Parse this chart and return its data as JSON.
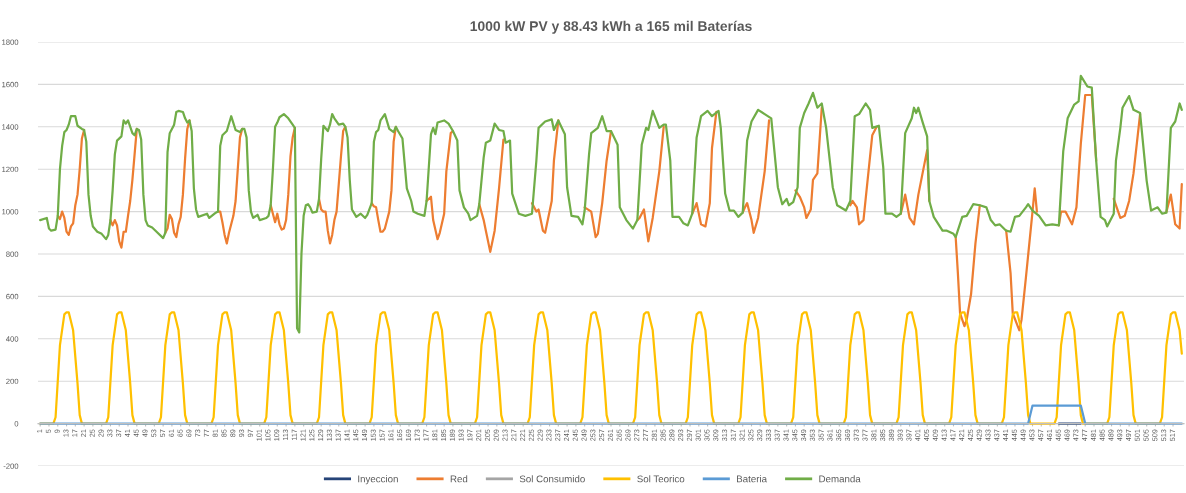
{
  "chart_data": {
    "type": "line",
    "title": "1000 kW PV y 88.43 kWh a 165 mil Baterías",
    "xlim": [
      0,
      522
    ],
    "xticks": [
      1,
      5,
      9,
      13,
      17,
      21,
      25,
      29,
      33,
      37,
      41,
      45,
      49,
      53,
      57,
      61,
      65,
      69,
      73,
      77,
      81,
      85,
      89,
      93,
      97,
      101,
      105,
      109,
      113,
      117,
      121,
      125,
      129,
      133,
      137,
      141,
      145,
      149,
      153,
      157,
      161,
      165,
      169,
      173,
      177,
      181,
      185,
      189,
      193,
      197,
      201,
      205,
      209,
      213,
      217,
      221,
      225,
      229,
      233,
      237,
      241,
      245,
      249,
      253,
      257,
      261,
      265,
      269,
      273,
      277,
      281,
      285,
      289,
      293,
      297,
      301,
      305,
      309,
      313,
      317,
      321,
      325,
      329,
      333,
      337,
      341,
      345,
      349,
      353,
      357,
      361,
      365,
      369,
      373,
      377,
      381,
      385,
      389,
      393,
      397,
      401,
      405,
      409,
      413,
      417,
      421,
      425,
      429,
      433,
      437,
      441,
      445,
      449,
      453,
      457,
      461,
      465,
      469,
      473,
      477,
      481,
      485,
      489,
      493,
      497,
      501,
      505,
      509,
      513,
      517
    ],
    "ylim": [
      -200,
      1800
    ],
    "yticks": [
      -200,
      0,
      200,
      400,
      600,
      800,
      1000,
      1200,
      1400,
      1600,
      1800
    ],
    "grid": "y",
    "legend": "bottom",
    "marker": "none",
    "line_style": "solid",
    "series": [
      {
        "name": "Inyeccion",
        "color": "#264478",
        "x": [
          465,
          475
        ],
        "values": [
          0,
          0
        ]
      },
      {
        "name": "Red",
        "color": "#ed7d31",
        "x": [
          9,
          10,
          11,
          12,
          13,
          14,
          15,
          16,
          17,
          18,
          19,
          20,
          21,
          22,
          33,
          34,
          35,
          36,
          37,
          38,
          39,
          40,
          41,
          42,
          43,
          44,
          45,
          46,
          58,
          59,
          60,
          61,
          62,
          63,
          64,
          65,
          66,
          67,
          68,
          69,
          70,
          82,
          83,
          84,
          85,
          86,
          87,
          88,
          89,
          90,
          91,
          92,
          93,
          94,
          106,
          107,
          108,
          109,
          110,
          111,
          112,
          113,
          114,
          115,
          116,
          117,
          118,
          128,
          129,
          130,
          131,
          132,
          133,
          134,
          135,
          136,
          137,
          138,
          139,
          140,
          141,
          152,
          153,
          154,
          155,
          156,
          157,
          158,
          159,
          160,
          161,
          162,
          163,
          164,
          177,
          179,
          180,
          182,
          183,
          185,
          186,
          188,
          189,
          190,
          201,
          203,
          204,
          206,
          208,
          210,
          212,
          213,
          225,
          227,
          228,
          230,
          231,
          234,
          235,
          237,
          238,
          249,
          252,
          254,
          255,
          257,
          259,
          261,
          262,
          273,
          274,
          276,
          278,
          280,
          283,
          285,
          286,
          298,
          300,
          302,
          304,
          306,
          307,
          309,
          310,
          321,
          322,
          323,
          325,
          326,
          328,
          331,
          333,
          334,
          345,
          347,
          349,
          350,
          352,
          353,
          355,
          357,
          358,
          370,
          371,
          373,
          374,
          376,
          378,
          380,
          382,
          383,
          393,
          395,
          397,
          399,
          401,
          405,
          406,
          407,
          418,
          419,
          420,
          422,
          423,
          425,
          427,
          429,
          430,
          441,
          443,
          444,
          447,
          448,
          450,
          453,
          454,
          455,
          456,
          465,
          466,
          468,
          471,
          473,
          475,
          477,
          480,
          482,
          483,
          490,
          493,
          495,
          497,
          499,
          502,
          503,
          514,
          516,
          518,
          520,
          521
        ],
        "values": [
          980,
          965,
          1000,
          970,
          905,
          890,
          930,
          945,
          1030,
          1080,
          1200,
          1345,
          1385,
          null,
          960,
          935,
          960,
          935,
          860,
          830,
          905,
          905,
          980,
          1050,
          1150,
          1270,
          1390,
          null,
          900,
          920,
          985,
          965,
          900,
          880,
          940,
          975,
          1080,
          1250,
          1390,
          1430,
          null,
          1000,
          1000,
          950,
          890,
          850,
          900,
          940,
          980,
          1050,
          1200,
          1350,
          1390,
          null,
          1030,
          990,
          950,
          990,
          940,
          915,
          920,
          960,
          1080,
          1260,
          1350,
          1395,
          null,
          1060,
          1010,
          1000,
          1000,
          910,
          850,
          890,
          960,
          1000,
          1130,
          1260,
          1380,
          1400,
          null,
          1040,
          1025,
          1020,
          960,
          905,
          905,
          920,
          960,
          1000,
          1100,
          1330,
          1400,
          null,
          1050,
          1070,
          960,
          870,
          900,
          990,
          1190,
          1370,
          1380,
          null,
          1035,
          960,
          910,
          810,
          910,
          1110,
          1340,
          null,
          1040,
          1000,
          1010,
          910,
          900,
          1050,
          1240,
          1430,
          null,
          1020,
          1000,
          880,
          895,
          1040,
          1240,
          1380,
          null,
          960,
          970,
          1010,
          860,
          970,
          1190,
          1400,
          null,
          990,
          1040,
          940,
          930,
          1040,
          1300,
          1470,
          null,
          995,
          1020,
          1040,
          960,
          900,
          970,
          1190,
          1430,
          null,
          1100,
          1070,
          1020,
          970,
          1010,
          1150,
          1180,
          1490,
          null,
          1030,
          1050,
          1020,
          940,
          960,
          1160,
          1360,
          1400,
          null,
          990,
          1080,
          970,
          940,
          1080,
          1290,
          1050,
          null,
          880,
          710,
          520,
          460,
          490,
          610,
          850,
          1030,
          null,
          910,
          710,
          520,
          440,
          490,
          690,
          1000,
          1110,
          1000,
          null,
          935,
          1000,
          1000,
          940,
          1020,
          1320,
          1550,
          1550,
          1240,
          null,
          1060,
          970,
          980,
          1050,
          1180,
          1460,
          null,
          1000,
          1080,
          940,
          920,
          1130
        ]
      },
      {
        "name": "Sol Consumido",
        "color": "#a5a5a5"
      },
      {
        "name": "Sol Teorico",
        "color": "#ffc000",
        "x": [
          1,
          7,
          8,
          10,
          12,
          13,
          14,
          16,
          18,
          19,
          20,
          31,
          32,
          34,
          36,
          37,
          38,
          40,
          42,
          43,
          44,
          55,
          56,
          58,
          60,
          61,
          62,
          64,
          66,
          67,
          68,
          79,
          80,
          82,
          84,
          85,
          86,
          88,
          90,
          91,
          92,
          103,
          104,
          106,
          108,
          109,
          110,
          112,
          114,
          115,
          116,
          127,
          128,
          130,
          132,
          133,
          134,
          136,
          138,
          139,
          140,
          151,
          152,
          154,
          156,
          157,
          158,
          160,
          162,
          163,
          164,
          175,
          176,
          178,
          180,
          181,
          182,
          184,
          186,
          187,
          188,
          199,
          200,
          202,
          204,
          205,
          206,
          208,
          210,
          211,
          212,
          223,
          224,
          226,
          228,
          229,
          230,
          232,
          234,
          235,
          236,
          247,
          248,
          250,
          252,
          253,
          254,
          256,
          258,
          259,
          260,
          271,
          272,
          274,
          276,
          277,
          278,
          280,
          282,
          283,
          284,
          295,
          296,
          298,
          300,
          301,
          302,
          304,
          306,
          307,
          308,
          319,
          320,
          322,
          324,
          325,
          326,
          328,
          330,
          331,
          332,
          343,
          344,
          346,
          348,
          349,
          350,
          352,
          354,
          355,
          356,
          367,
          368,
          370,
          372,
          373,
          374,
          376,
          378,
          379,
          380,
          391,
          392,
          394,
          396,
          397,
          398,
          400,
          402,
          403,
          404,
          415,
          416,
          418,
          420,
          421,
          422,
          424,
          426,
          427,
          428,
          439,
          440,
          442,
          444,
          445,
          446,
          448,
          450,
          451,
          452,
          463,
          464,
          466,
          468,
          469,
          470,
          472,
          474,
          475,
          476,
          487,
          488,
          490,
          492,
          493,
          494,
          496,
          498,
          499,
          500,
          511,
          512,
          514,
          516,
          517,
          518,
          520,
          521
        ],
        "values": [
          0,
          0,
          30,
          370,
          515,
          525,
          525,
          440,
          190,
          40,
          0,
          0,
          30,
          370,
          515,
          525,
          525,
          440,
          190,
          40,
          0,
          0,
          30,
          370,
          515,
          525,
          525,
          440,
          190,
          40,
          0,
          0,
          30,
          370,
          515,
          525,
          525,
          440,
          190,
          40,
          0,
          0,
          30,
          370,
          515,
          525,
          525,
          440,
          190,
          40,
          0,
          0,
          30,
          370,
          515,
          525,
          525,
          440,
          190,
          40,
          0,
          0,
          30,
          370,
          515,
          525,
          525,
          440,
          190,
          40,
          0,
          0,
          30,
          370,
          515,
          525,
          525,
          440,
          190,
          40,
          0,
          0,
          30,
          370,
          515,
          525,
          525,
          440,
          190,
          40,
          0,
          0,
          30,
          370,
          515,
          525,
          525,
          440,
          190,
          40,
          0,
          0,
          30,
          370,
          515,
          525,
          525,
          440,
          190,
          40,
          0,
          0,
          30,
          370,
          515,
          525,
          525,
          440,
          190,
          40,
          0,
          0,
          30,
          370,
          515,
          525,
          525,
          440,
          190,
          40,
          0,
          0,
          30,
          370,
          515,
          525,
          525,
          440,
          190,
          40,
          0,
          0,
          30,
          370,
          515,
          525,
          525,
          440,
          190,
          40,
          0,
          0,
          30,
          370,
          515,
          525,
          525,
          440,
          190,
          40,
          0,
          0,
          30,
          370,
          515,
          525,
          525,
          440,
          190,
          40,
          0,
          0,
          30,
          370,
          515,
          525,
          525,
          440,
          190,
          40,
          0,
          0,
          30,
          370,
          515,
          525,
          525,
          440,
          190,
          40,
          0,
          0,
          30,
          370,
          515,
          525,
          525,
          440,
          190,
          40,
          0,
          0,
          30,
          370,
          515,
          525,
          525,
          440,
          190,
          40,
          0,
          0,
          30,
          370,
          515,
          525,
          525,
          440,
          330
        ]
      },
      {
        "name": "Bateria",
        "color": "#5b9bd5",
        "x": [
          1,
          451,
          453,
          475,
          477,
          521
        ],
        "values": [
          0,
          0,
          85,
          85,
          0,
          0
        ]
      },
      {
        "name": "Demanda",
        "color": "#70ad47",
        "x": [
          1,
          4,
          5,
          6,
          8,
          9,
          10,
          11,
          12,
          13,
          14,
          15,
          17,
          18,
          20,
          21,
          22,
          23,
          24,
          25,
          27,
          29,
          31,
          32,
          33,
          34,
          35,
          36,
          38,
          39,
          40,
          41,
          43,
          44,
          45,
          46,
          47,
          48,
          49,
          50,
          52,
          54,
          57,
          58,
          59,
          60,
          62,
          63,
          64,
          66,
          67,
          68,
          69,
          70,
          71,
          72,
          73,
          77,
          78,
          81,
          82,
          83,
          84,
          86,
          88,
          90,
          92,
          93,
          94,
          95,
          96,
          97,
          98,
          100,
          101,
          104,
          105,
          106,
          107,
          108,
          109,
          110,
          112,
          114,
          116,
          117,
          118,
          119,
          120,
          121,
          122,
          123,
          124,
          125,
          127,
          128,
          129,
          130,
          132,
          133,
          134,
          135,
          137,
          139,
          140,
          141,
          142,
          143,
          145,
          147,
          149,
          150,
          152,
          153,
          154,
          155,
          156,
          158,
          160,
          162,
          163,
          164,
          166,
          168,
          170,
          171,
          173,
          176,
          177,
          179,
          180,
          181,
          182,
          185,
          187,
          189,
          191,
          192,
          194,
          196,
          197,
          200,
          201,
          203,
          204,
          206,
          208,
          210,
          212,
          213,
          215,
          216,
          219,
          222,
          225,
          227,
          228,
          231,
          234,
          235,
          237,
          240,
          241,
          243,
          246,
          248,
          249,
          251,
          252,
          255,
          257,
          259,
          261,
          264,
          265,
          268,
          271,
          273,
          275,
          277,
          278,
          280,
          283,
          285,
          286,
          288,
          289,
          292,
          294,
          296,
          298,
          300,
          302,
          305,
          307,
          310,
          311,
          313,
          315,
          317,
          319,
          321,
          323,
          325,
          328,
          331,
          334,
          337,
          339,
          341,
          342,
          344,
          346,
          347,
          349,
          351,
          353,
          355,
          357,
          359,
          362,
          364,
          368,
          370,
          372,
          374,
          377,
          379,
          380,
          383,
          385,
          386,
          389,
          391,
          393,
          395,
          398,
          399,
          400,
          401,
          403,
          405,
          406,
          408,
          412,
          414,
          417,
          418,
          421,
          423,
          426,
          429,
          432,
          434,
          436,
          438,
          441,
          443,
          445,
          447,
          450,
          451,
          453,
          456,
          459,
          462,
          465,
          467,
          469,
          472,
          474,
          475,
          478,
          480,
          482,
          484,
          486,
          487,
          490,
          491,
          493,
          494,
          497,
          499,
          502,
          505,
          507,
          510,
          512,
          514,
          516,
          518,
          520,
          521
        ],
        "values": [
          960,
          970,
          920,
          910,
          915,
          980,
          1200,
          1310,
          1375,
          1385,
          1410,
          1450,
          1450,
          1405,
          1390,
          1385,
          1330,
          1080,
          980,
          930,
          905,
          895,
          870,
          890,
          960,
          1100,
          1270,
          1335,
          1355,
          1430,
          1415,
          1430,
          1370,
          1360,
          1390,
          1385,
          1340,
          1080,
          960,
          935,
          925,
          905,
          875,
          900,
          1280,
          1370,
          1410,
          1470,
          1475,
          1470,
          1440,
          1420,
          1430,
          1380,
          1110,
          1010,
          975,
          990,
          970,
          995,
          1000,
          1310,
          1360,
          1380,
          1450,
          1385,
          1375,
          1390,
          1390,
          1350,
          1100,
          1000,
          970,
          985,
          960,
          970,
          980,
          1030,
          1200,
          1400,
          1420,
          1445,
          1460,
          1440,
          1410,
          1395,
          450,
          430,
          800,
          980,
          1030,
          1035,
          1020,
          995,
          1000,
          1060,
          1250,
          1405,
          1380,
          1410,
          1460,
          1440,
          1410,
          1415,
          1400,
          1350,
          1150,
          1010,
          975,
          990,
          970,
          985,
          1040,
          1330,
          1375,
          1385,
          1430,
          1460,
          1390,
          1375,
          1400,
          1380,
          1345,
          1110,
          1050,
          1000,
          990,
          980,
          1050,
          1365,
          1395,
          1365,
          1420,
          1430,
          1415,
          1380,
          1335,
          1100,
          1020,
          990,
          960,
          980,
          1035,
          1255,
          1325,
          1335,
          1415,
          1385,
          1380,
          1325,
          1335,
          1085,
          990,
          980,
          990,
          1240,
          1395,
          1425,
          1435,
          1385,
          1430,
          1365,
          1115,
          980,
          975,
          940,
          1005,
          1270,
          1370,
          1395,
          1450,
          1380,
          1380,
          1315,
          1020,
          960,
          920,
          960,
          1315,
          1395,
          1385,
          1475,
          1395,
          1410,
          1410,
          1240,
          975,
          975,
          945,
          935,
          990,
          1350,
          1450,
          1475,
          1450,
          1475,
          1395,
          1085,
          1005,
          1005,
          975,
          995,
          1335,
          1425,
          1480,
          1460,
          1440,
          1115,
          1035,
          1060,
          1030,
          1045,
          1115,
          1395,
          1465,
          1510,
          1560,
          1490,
          1510,
          1395,
          1115,
          1030,
          1005,
          1050,
          1450,
          1460,
          1510,
          1480,
          1395,
          1405,
          1210,
          990,
          990,
          975,
          990,
          1370,
          1440,
          1490,
          1465,
          1490,
          1420,
          1355,
          1050,
          975,
          910,
          910,
          895,
          880,
          975,
          980,
          1035,
          1030,
          1020,
          960,
          935,
          940,
          910,
          905,
          975,
          980,
          1020,
          1035,
          1005,
          980,
          935,
          940,
          935,
          1285,
          1440,
          1505,
          1520,
          1640,
          1590,
          1585,
          1240,
          975,
          960,
          930,
          990,
          1240,
          1395,
          1490,
          1545,
          1480,
          1465,
          1145,
          1005,
          1020,
          990,
          995,
          1395,
          1425,
          1510,
          1480
        ]
      }
    ]
  }
}
